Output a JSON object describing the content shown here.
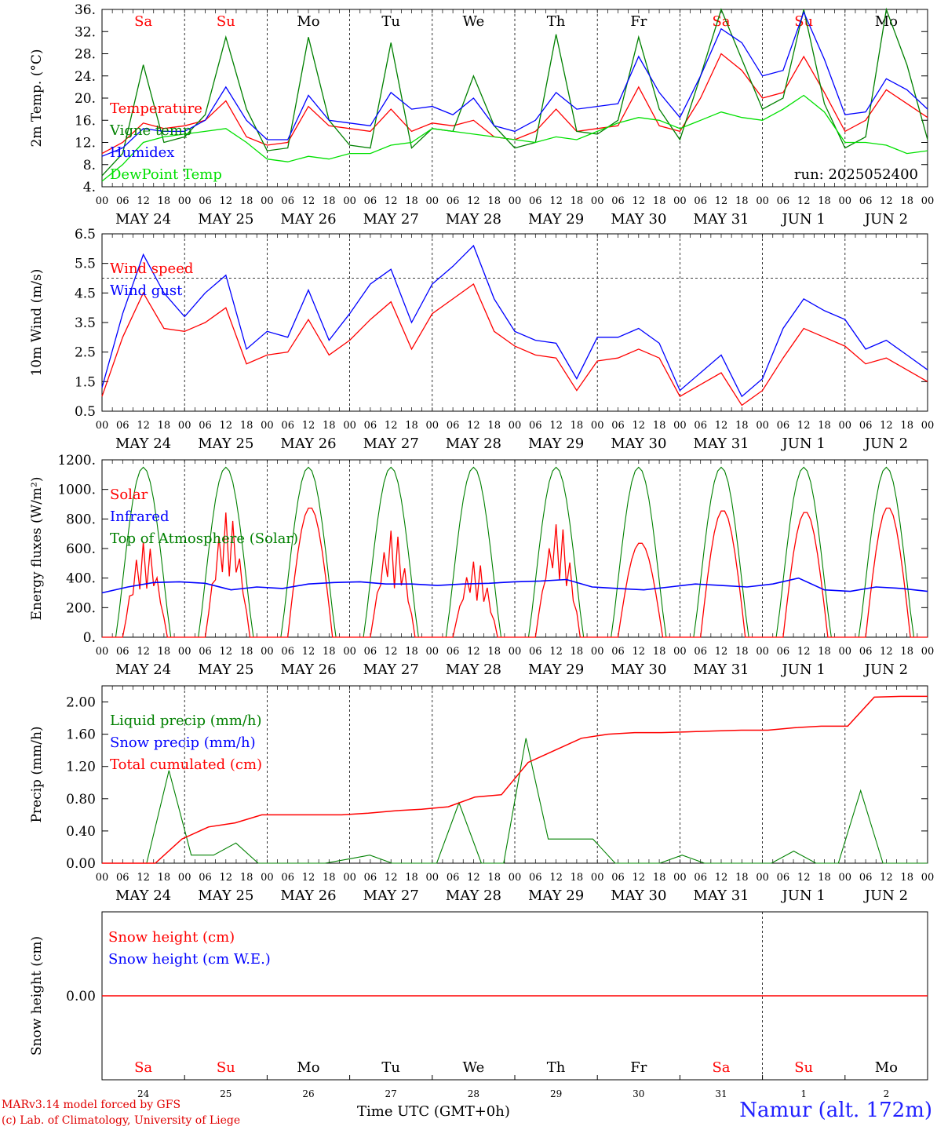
{
  "chart_data": [
    {
      "type": "line",
      "ylabel": "2m Temp. (°C)",
      "ylim": [
        4,
        36
      ],
      "yticks": [
        "36.",
        "32.",
        "28.",
        "24.",
        "20.",
        "16.",
        "12.",
        "8.",
        "4."
      ],
      "run_label": "run: 2025052400",
      "x_hours": [
        0,
        6,
        12,
        18,
        24,
        30,
        36,
        42,
        48,
        54,
        60,
        66,
        72,
        78,
        84,
        90,
        96,
        102,
        108,
        114,
        120,
        126,
        132,
        138,
        144,
        150,
        156,
        162,
        168,
        174,
        180,
        186,
        192,
        198,
        204,
        210,
        216,
        222,
        228,
        234,
        240
      ],
      "series": [
        {
          "name": "Temperature",
          "color": "#ff0000",
          "values": [
            10,
            12,
            15.5,
            14.5,
            15,
            16,
            19.5,
            13,
            11.5,
            12,
            18.5,
            15,
            14.5,
            14,
            18,
            14,
            15.5,
            15,
            16,
            13,
            12.5,
            14,
            18,
            14,
            14.5,
            15,
            22,
            15,
            14,
            20,
            28,
            25,
            20,
            21,
            27.5,
            21,
            14,
            16,
            21.5,
            19,
            16.5
          ]
        },
        {
          "name": "Vigne temp",
          "color": "#008000",
          "values": [
            6,
            10,
            26,
            12,
            13,
            17,
            31,
            18,
            10.5,
            11,
            31,
            16,
            11.5,
            11,
            30,
            11,
            14.5,
            14,
            24,
            15,
            11,
            12,
            31.5,
            14,
            13.5,
            16,
            31,
            18,
            12.5,
            24,
            36,
            27,
            18,
            20,
            36,
            19,
            11,
            13,
            36,
            26,
            12.5
          ]
        },
        {
          "name": "Humidex",
          "color": "#0000ff",
          "values": [
            9.5,
            11,
            14.5,
            14,
            14,
            16,
            22,
            16,
            12.5,
            12.5,
            20.5,
            16,
            15.5,
            15,
            21,
            18,
            18.5,
            17,
            20,
            15,
            14,
            16,
            21,
            18,
            18.5,
            19,
            27.5,
            21,
            16.5,
            24,
            32.5,
            30,
            24,
            25,
            35.5,
            27,
            17,
            17.5,
            23.5,
            21.5,
            18
          ]
        },
        {
          "name": "DewPoint Temp",
          "color": "#00e000",
          "values": [
            5,
            8,
            12,
            13,
            13.5,
            14,
            14.5,
            12,
            9,
            8.5,
            9.5,
            9,
            10,
            10,
            11.5,
            12,
            14.5,
            14,
            13.5,
            13,
            12.5,
            12,
            13,
            12.5,
            14,
            15.5,
            16.5,
            16,
            14.5,
            16,
            17.5,
            16.5,
            16,
            18,
            20.5,
            17.5,
            12,
            12,
            11.5,
            10,
            10.5
          ]
        }
      ]
    },
    {
      "type": "line",
      "ylabel": "10m Wind (m/s)",
      "ylim": [
        0.5,
        6.5
      ],
      "yticks": [
        "6.5",
        "5.5",
        "4.5",
        "3.5",
        "2.5",
        "1.5",
        "0.5"
      ],
      "ref_line": 5.0,
      "x_hours": [
        0,
        6,
        12,
        18,
        24,
        30,
        36,
        42,
        48,
        54,
        60,
        66,
        72,
        78,
        84,
        90,
        96,
        102,
        108,
        114,
        120,
        126,
        132,
        138,
        144,
        150,
        156,
        162,
        168,
        174,
        180,
        186,
        192,
        198,
        204,
        210,
        216,
        222,
        228,
        234,
        240
      ],
      "series": [
        {
          "name": "Wind speed",
          "color": "#ff0000",
          "values": [
            1,
            3,
            4.5,
            3.3,
            3.2,
            3.5,
            4,
            2.1,
            2.4,
            2.5,
            3.6,
            2.4,
            2.9,
            3.6,
            4.2,
            2.6,
            3.8,
            4.3,
            4.8,
            3.2,
            2.7,
            2.4,
            2.3,
            1.2,
            2.2,
            2.3,
            2.6,
            2.3,
            1,
            1.4,
            1.8,
            0.7,
            1.2,
            2.3,
            3.3,
            3,
            2.7,
            2.1,
            2.3,
            1.9,
            1.5
          ]
        },
        {
          "name": "Wind gust",
          "color": "#0000ff",
          "values": [
            1.3,
            3.8,
            5.8,
            4.5,
            3.7,
            4.5,
            5.1,
            2.6,
            3.2,
            3,
            4.6,
            2.9,
            3.8,
            4.8,
            5.3,
            3.5,
            4.8,
            5.4,
            6.1,
            4.3,
            3.2,
            2.9,
            2.8,
            1.6,
            3,
            3,
            3.3,
            2.8,
            1.2,
            1.8,
            2.4,
            1,
            1.6,
            3.3,
            4.3,
            3.9,
            3.6,
            2.6,
            2.9,
            2.4,
            1.9
          ]
        }
      ]
    },
    {
      "type": "line",
      "ylabel": "Energy fluxes (W/m²)",
      "ylim": [
        0,
        1200
      ],
      "yticks": [
        "1200.",
        "1000.",
        "800.",
        "600.",
        "400.",
        "200.",
        "0."
      ],
      "toa_peak": 1150,
      "solar_peaks": [
        650,
        850,
        880,
        730,
        520,
        780,
        640,
        860,
        850,
        880
      ],
      "series": [
        {
          "name": "Solar",
          "color": "#ff0000"
        },
        {
          "name": "Infrared",
          "color": "#0000ff",
          "values": [
            300,
            340,
            370,
            375,
            365,
            320,
            340,
            330,
            360,
            370,
            375,
            360,
            360,
            350,
            360,
            365,
            375,
            380,
            390,
            340,
            330,
            320,
            340,
            360,
            350,
            340,
            360,
            400,
            320,
            310,
            340,
            330,
            310
          ]
        },
        {
          "name": "Top of Atmosphere (Solar)",
          "color": "#008000"
        }
      ]
    },
    {
      "type": "line",
      "ylabel": "Precip (mm/h)",
      "ylim": [
        0,
        2.2
      ],
      "yticks": [
        "2.00",
        "1.60",
        "1.20",
        "0.80",
        "0.40",
        "0.00"
      ],
      "series": [
        {
          "name": "Liquid precip (mm/h)",
          "color": "#008000",
          "values": [
            0,
            0,
            0,
            1.15,
            0.1,
            0.1,
            0.25,
            0,
            0,
            0,
            0,
            0.05,
            0.1,
            0,
            0,
            0,
            0.75,
            0,
            0,
            1.55,
            0.3,
            0.3,
            0.3,
            0,
            0,
            0,
            0.1,
            0,
            0,
            0,
            0,
            0.15,
            0,
            0,
            0.9,
            0,
            0,
            0
          ]
        },
        {
          "name": "Snow precip (mm/h)",
          "color": "#0000ff"
        },
        {
          "name": "Total cumulated (cm)",
          "color": "#ff0000",
          "values": [
            0,
            0,
            0,
            0.3,
            0.45,
            0.5,
            0.6,
            0.6,
            0.6,
            0.6,
            0.62,
            0.65,
            0.67,
            0.7,
            0.82,
            0.85,
            1.25,
            1.4,
            1.55,
            1.6,
            1.62,
            1.62,
            1.63,
            1.64,
            1.65,
            1.65,
            1.68,
            1.7,
            1.7,
            2.06,
            2.07,
            2.07
          ]
        }
      ]
    },
    {
      "type": "line",
      "ylabel": "Snow height (cm)",
      "yticks": [
        "0.00"
      ],
      "series": [
        {
          "name": "Snow height (cm)",
          "color": "#ff0000",
          "values": [
            0,
            0
          ]
        },
        {
          "name": "Snow height (cm W.E.)",
          "color": "#0000ff"
        }
      ]
    }
  ],
  "hour_ticks": [
    "00",
    "06",
    "12",
    "18"
  ],
  "last_hour_tick": "00",
  "date_labels": [
    "MAY 24",
    "MAY 25",
    "MAY 26",
    "MAY 27",
    "MAY 28",
    "MAY 29",
    "MAY 30",
    "MAY 31",
    "JUN  1",
    "JUN  2"
  ],
  "weekdays": [
    {
      "label": "Sa",
      "color": "#ff0000"
    },
    {
      "label": "Su",
      "color": "#ff0000"
    },
    {
      "label": "Mo",
      "color": "#000000"
    },
    {
      "label": "Tu",
      "color": "#000000"
    },
    {
      "label": "We",
      "color": "#000000"
    },
    {
      "label": "Th",
      "color": "#000000"
    },
    {
      "label": "Fr",
      "color": "#000000"
    },
    {
      "label": "Sa",
      "color": "#ff0000"
    },
    {
      "label": "Su",
      "color": "#ff0000"
    },
    {
      "label": "Mo",
      "color": "#000000"
    }
  ],
  "day_numbers": [
    "24",
    "25",
    "26",
    "27",
    "28",
    "29",
    "30",
    "31",
    "1",
    "2"
  ],
  "footer": {
    "credit1": "MARv3.14 model forced by GFS",
    "credit2": "(c) Lab. of Climatology, University of Liege",
    "time_axis": "Time UTC (GMT+0h)",
    "station": "Namur (alt. 172m)"
  }
}
